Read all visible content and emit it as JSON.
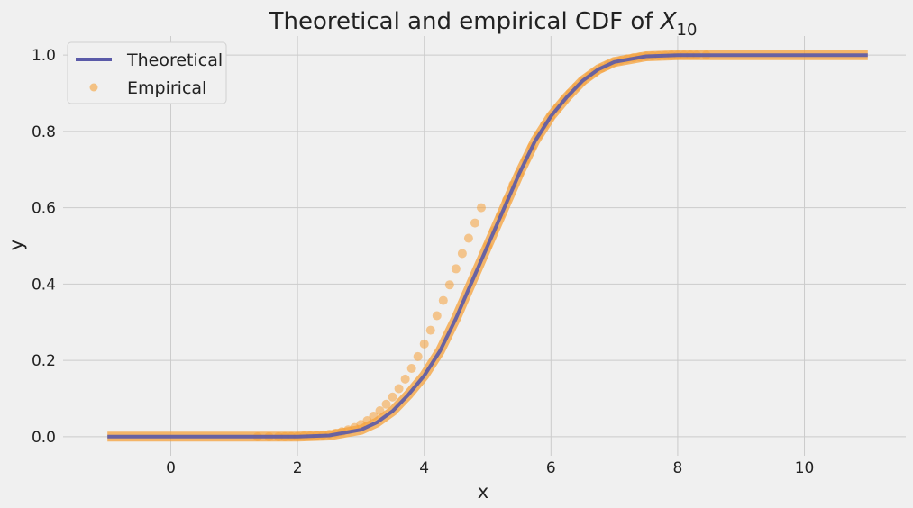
{
  "chart_data": {
    "type": "line",
    "title": "Theoretical and empirical CDF of ",
    "title_math": "X",
    "title_math_sub": "10",
    "xlabel": "x",
    "ylabel": "y",
    "xlim": [
      -1.7,
      11.6
    ],
    "ylim": [
      -0.05,
      1.05
    ],
    "xticks": [
      0,
      2,
      4,
      6,
      8,
      10
    ],
    "yticks": [
      0.0,
      0.2,
      0.4,
      0.6,
      0.8,
      1.0
    ],
    "ytick_labels": [
      "0.0",
      "0.2",
      "0.4",
      "0.6",
      "0.8",
      "1.0"
    ],
    "grid": true,
    "legend_position": "top-left",
    "series": [
      {
        "name": "Theoretical",
        "kind": "line",
        "color": "#5a5aa8",
        "x": [
          -1,
          1,
          2,
          2.5,
          3,
          3.25,
          3.5,
          3.75,
          4,
          4.25,
          4.5,
          4.75,
          5,
          5.25,
          5.5,
          5.75,
          6,
          6.25,
          6.5,
          6.75,
          7,
          7.5,
          8,
          9,
          11
        ],
        "y": [
          0,
          0,
          0.0003,
          0.003,
          0.018,
          0.037,
          0.067,
          0.11,
          0.16,
          0.225,
          0.31,
          0.405,
          0.5,
          0.595,
          0.69,
          0.775,
          0.84,
          0.89,
          0.933,
          0.963,
          0.982,
          0.997,
          0.9997,
          1,
          1
        ]
      },
      {
        "name": "Empirical",
        "kind": "scatter",
        "color": "#f5a13b",
        "x": [
          1.37,
          1.55,
          1.7,
          1.8,
          1.9,
          2.0,
          2.1,
          2.2,
          2.3,
          2.4,
          2.5,
          2.6,
          2.7,
          2.8,
          2.9,
          3.0,
          3.1,
          3.2,
          3.3,
          3.4,
          3.5,
          3.6,
          3.7,
          3.8,
          3.9,
          4.0,
          4.1,
          4.2,
          4.3,
          4.4,
          4.5,
          4.6,
          4.7,
          4.8,
          4.9,
          5.0,
          5.1,
          5.2,
          5.3,
          5.4,
          5.5,
          5.6,
          5.7,
          5.8,
          5.9,
          6.0,
          6.1,
          6.2,
          6.3,
          6.4,
          6.5,
          6.6,
          6.7,
          6.8,
          6.9,
          7.0,
          7.1,
          7.2,
          7.3,
          7.4,
          7.5,
          7.6,
          7.7,
          7.8,
          7.9,
          8.0,
          8.1,
          8.2,
          8.3,
          8.45
        ],
        "y": [
          0.0,
          0.0,
          0.0,
          0.0002,
          0.0004,
          0.0007,
          0.0012,
          0.002,
          0.003,
          0.0045,
          0.0065,
          0.009,
          0.013,
          0.018,
          0.024,
          0.032,
          0.042,
          0.054,
          0.068,
          0.085,
          0.104,
          0.126,
          0.151,
          0.179,
          0.21,
          0.243,
          0.279,
          0.317,
          0.357,
          0.398,
          0.44,
          0.48,
          0.52,
          0.56,
          0.6,
          0.5,
          0.54,
          0.58,
          0.62,
          0.66,
          0.69,
          0.725,
          0.76,
          0.79,
          0.818,
          0.84,
          0.862,
          0.882,
          0.9,
          0.917,
          0.932,
          0.945,
          0.956,
          0.966,
          0.974,
          0.981,
          0.986,
          0.99,
          0.993,
          0.995,
          0.997,
          0.998,
          0.9988,
          0.9993,
          0.9996,
          0.9998,
          0.9999,
          1.0,
          1.0,
          1.0
        ]
      }
    ]
  }
}
